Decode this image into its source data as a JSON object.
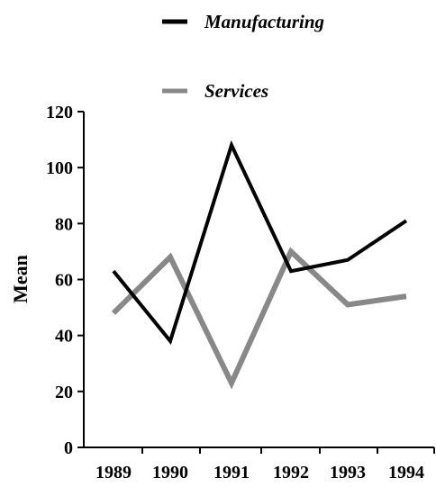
{
  "chart_data": {
    "type": "line",
    "categories": [
      "1989",
      "1990",
      "1991",
      "1992",
      "1993",
      "1994"
    ],
    "ylabel": "Mean",
    "xlabel": "",
    "ylim": [
      0,
      120
    ],
    "yticks": [
      0,
      20,
      40,
      60,
      80,
      100,
      120
    ],
    "grid": false,
    "legend_position": "top",
    "series": [
      {
        "name": "Manufacturing",
        "color": "#000000",
        "values": [
          63,
          38,
          108,
          63,
          67,
          81
        ]
      },
      {
        "name": "Services",
        "color": "#888888",
        "values": [
          48,
          68,
          23,
          70,
          51,
          54
        ]
      }
    ]
  }
}
